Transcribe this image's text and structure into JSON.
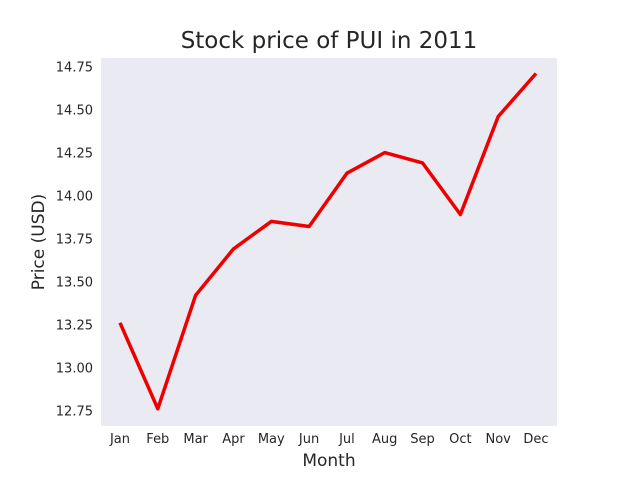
{
  "chart_data": {
    "type": "line",
    "title": "Stock price of PUI in 2011",
    "xlabel": "Month",
    "ylabel": "Price (USD)",
    "categories": [
      "Jan",
      "Feb",
      "Mar",
      "Apr",
      "May",
      "Jun",
      "Jul",
      "Aug",
      "Sep",
      "Oct",
      "Nov",
      "Dec"
    ],
    "series": [
      {
        "values": [
          13.26,
          12.76,
          13.42,
          13.69,
          13.85,
          13.82,
          14.13,
          14.25,
          14.19,
          13.89,
          14.46,
          14.71
        ],
        "color": "#ee0000"
      }
    ],
    "yticks": [
      12.75,
      13.0,
      13.25,
      13.5,
      13.75,
      14.0,
      14.25,
      14.5,
      14.75
    ],
    "ytick_labels": [
      "12.75",
      "13.00",
      "13.25",
      "13.50",
      "13.75",
      "14.00",
      "14.25",
      "14.50",
      "14.75"
    ],
    "ylim": [
      12.66,
      14.8
    ],
    "grid": false,
    "legend": "none",
    "background": "#eaeaf2"
  }
}
